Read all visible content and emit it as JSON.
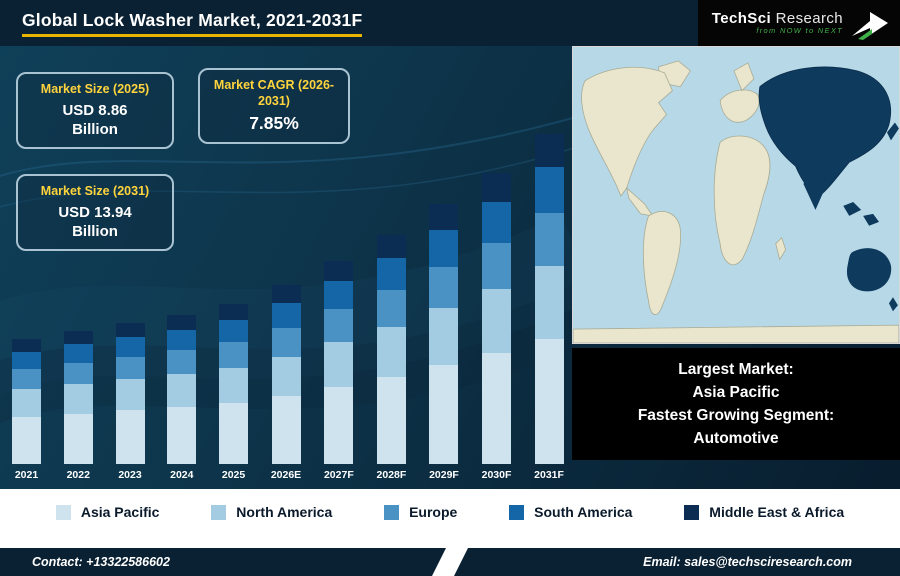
{
  "header": {
    "title": "Global Lock Washer Market, 2021-2031F",
    "logo": {
      "brand_primary": "TechSci",
      "brand_secondary": "Research",
      "tagline": "from NOW to NEXT"
    }
  },
  "cards": [
    {
      "title": "Market Size (2025)",
      "line1": "USD 8.86",
      "line2": "Billion"
    },
    {
      "title": "Market CAGR (2026-2031)",
      "value": "7.85%"
    },
    {
      "title": "Market Size (2031)",
      "line1": "USD 13.94",
      "line2": "Billion"
    }
  ],
  "chart_data": {
    "type": "bar",
    "stacked": true,
    "unit": "USD Billion",
    "title": "Global Lock Washer Market, 2021-2031F",
    "categories": [
      "2021",
      "2022",
      "2023",
      "2024",
      "2025",
      "2026E",
      "2027F",
      "2028F",
      "2029F",
      "2030F",
      "2031F"
    ],
    "totals": [
      7.6,
      7.9,
      8.2,
      8.5,
      8.86,
      9.5,
      10.3,
      11.1,
      12.0,
      12.9,
      13.94
    ],
    "series": [
      {
        "name": "Asia Pacific",
        "color": "#cfe3ef",
        "values": [
          2.89,
          3.0,
          3.12,
          3.23,
          3.37,
          3.61,
          3.91,
          4.22,
          4.56,
          4.9,
          5.3
        ]
      },
      {
        "name": "North America",
        "color": "#a3cbe2",
        "values": [
          1.67,
          1.74,
          1.8,
          1.87,
          1.95,
          2.09,
          2.27,
          2.44,
          2.64,
          2.84,
          3.07
        ]
      },
      {
        "name": "Europe",
        "color": "#4a92c3",
        "values": [
          1.22,
          1.26,
          1.31,
          1.36,
          1.42,
          1.52,
          1.65,
          1.78,
          1.92,
          2.06,
          2.23
        ]
      },
      {
        "name": "South America",
        "color": "#1566a7",
        "values": [
          1.06,
          1.11,
          1.15,
          1.19,
          1.24,
          1.33,
          1.44,
          1.55,
          1.68,
          1.81,
          1.95
        ]
      },
      {
        "name": "Middle East & Africa",
        "color": "#0b2c53",
        "values": [
          0.76,
          0.79,
          0.82,
          0.85,
          0.89,
          0.95,
          1.03,
          1.11,
          1.2,
          1.29,
          1.39
        ]
      }
    ],
    "xlabel": "",
    "ylabel": "",
    "ylim": [
      0,
      14
    ],
    "grid": false,
    "legend_position": "bottom"
  },
  "highlight_box": {
    "lines": [
      "Largest Market:",
      "Asia Pacific",
      "Fastest Growing Segment:",
      "Automotive"
    ]
  },
  "legend": [
    {
      "label": "Asia Pacific",
      "color": "#cfe3ef"
    },
    {
      "label": "North America",
      "color": "#a3cbe2"
    },
    {
      "label": "Europe",
      "color": "#4a92c3"
    },
    {
      "label": "South America",
      "color": "#1566a7"
    },
    {
      "label": "Middle East & Africa",
      "color": "#0b2c53"
    }
  ],
  "map": {
    "highlight_color": "#0e3a5e",
    "land_color": "#eae6cd",
    "ocean_color": "#b7d8e7"
  },
  "footer": {
    "contact": "Contact: +13322586602",
    "email": "Email: sales@techsciresearch.com"
  }
}
